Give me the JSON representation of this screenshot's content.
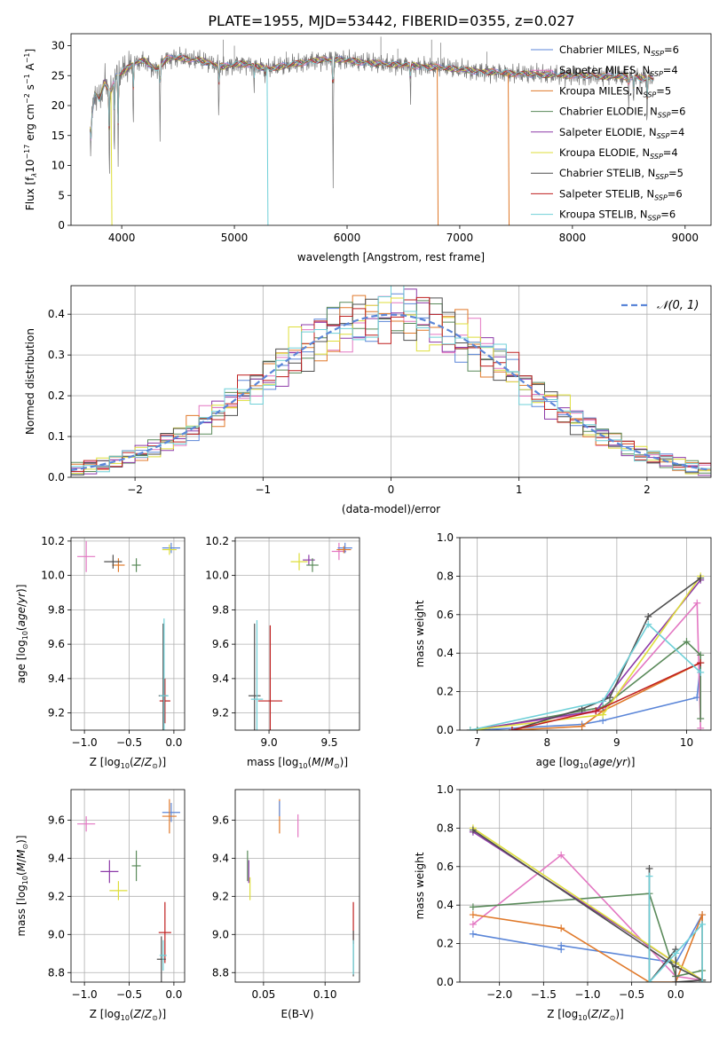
{
  "title": "PLATE=1955, MJD=53442, FIBERID=0355, z=0.027",
  "colors": [
    "#5b86d8",
    "#e377c2",
    "#e0792a",
    "#5a8a5a",
    "#8d3aa8",
    "#dede3a",
    "#4f4f4f",
    "#bf1f1f",
    "#6fd0d8"
  ],
  "legend_labels": [
    "Chabrier MILES, N_SSP=6",
    "Salpeter MILES, N_SSP=4",
    "Kroupa MILES, N_SSP=5",
    "Chabrier ELODIE, N_SSP=6",
    "Salpeter ELODIE, N_SSP=4",
    "Kroupa ELODIE, N_SSP=4",
    "Chabrier STELIB, N_SSP=5",
    "Salpeter STELIB, N_SSP=6",
    "Kroupa STELIB, N_SSP=6"
  ],
  "chart_data": [
    {
      "id": "spectrum",
      "type": "line",
      "xlabel": "wavelength [Angstrom, rest frame]",
      "ylabel": "Flux [f_λ 10^-17 erg cm^-2 s^-1 A^-1]",
      "xlim": [
        3550,
        9230
      ],
      "ylim": [
        0,
        32
      ],
      "xticks": [
        4000,
        5000,
        6000,
        7000,
        8000,
        9000
      ],
      "yticks": [
        0,
        5,
        10,
        15,
        20,
        25,
        30
      ],
      "grid": false,
      "legend": "upper-right",
      "continuum": [
        [
          3720,
          16
        ],
        [
          3760,
          22
        ],
        [
          3800,
          21
        ],
        [
          3850,
          24
        ],
        [
          3900,
          22
        ],
        [
          3950,
          25
        ],
        [
          4000,
          25.5
        ],
        [
          4100,
          27
        ],
        [
          4200,
          27.5
        ],
        [
          4300,
          26
        ],
        [
          4400,
          27.8
        ],
        [
          4500,
          28
        ],
        [
          4700,
          27.5
        ],
        [
          4900,
          26.5
        ],
        [
          5000,
          26.8
        ],
        [
          5100,
          27
        ],
        [
          5200,
          26.5
        ],
        [
          5300,
          26.2
        ],
        [
          5500,
          26.8
        ],
        [
          5700,
          27.5
        ],
        [
          5900,
          27.8
        ],
        [
          6100,
          27.3
        ],
        [
          6300,
          27
        ],
        [
          6500,
          26.8
        ],
        [
          6700,
          26.5
        ],
        [
          6900,
          26.3
        ],
        [
          7100,
          25.8
        ],
        [
          7300,
          25.6
        ],
        [
          7500,
          25.3
        ],
        [
          7700,
          25.2
        ],
        [
          7900,
          25.1
        ],
        [
          8100,
          25
        ],
        [
          8300,
          24.9
        ],
        [
          8500,
          24.8
        ],
        [
          8700,
          24.5
        ]
      ],
      "dips": [
        [
          3727,
          11
        ],
        [
          3890,
          4
        ],
        [
          3934,
          10
        ],
        [
          3968,
          9
        ],
        [
          4102,
          15
        ],
        [
          4340,
          13
        ],
        [
          4861,
          16
        ],
        [
          5175,
          22
        ],
        [
          5270,
          24
        ],
        [
          5876,
          7
        ],
        [
          6563,
          19
        ],
        [
          8500,
          20
        ],
        [
          8542,
          19
        ],
        [
          8662,
          15
        ]
      ],
      "model_drops": [
        [
          3905,
          0
        ],
        [
          5290,
          0
        ],
        [
          6800,
          0
        ],
        [
          7430,
          0
        ]
      ]
    },
    {
      "id": "residuals",
      "type": "step",
      "xlabel": "(data-model)/error",
      "ylabel": "Normed distribution",
      "xlim": [
        -2.5,
        2.5
      ],
      "ylim": [
        0,
        0.47
      ],
      "xticks": [
        -2,
        -1,
        0,
        1,
        2
      ],
      "yticks": [
        0.0,
        0.1,
        0.2,
        0.3,
        0.4
      ],
      "xtick_labels": [
        "−2",
        "−1",
        "0",
        "1",
        "2"
      ],
      "grid": true,
      "legend": "upper-right",
      "reference": "N(0,1)",
      "reference_label": "𝒩(0, 1)",
      "bin_width": 0.1
    },
    {
      "id": "age_vs_Z",
      "type": "errorbar",
      "xlabel": "Z [log10(Z/Z⊙)]",
      "ylabel": "age [log10(age/yr)]",
      "xlim": [
        -1.15,
        0.12
      ],
      "ylim": [
        9.1,
        10.22
      ],
      "xticks": [
        -1.0,
        -0.5,
        0.0
      ],
      "xtick_labels": [
        "−1.0",
        "−0.5",
        "0.0"
      ],
      "yticks": [
        9.2,
        9.4,
        9.6,
        9.8,
        10.0,
        10.2
      ],
      "points": [
        {
          "s": 1,
          "x": -0.98,
          "y": 10.11,
          "xe": 0.1,
          "ye": 0.09
        },
        {
          "s": 2,
          "x": -0.62,
          "y": 10.06,
          "xe": 0.07,
          "ye": 0.04
        },
        {
          "s": 6,
          "x": -0.68,
          "y": 10.08,
          "xe": 0.1,
          "ye": 0.04
        },
        {
          "s": 3,
          "x": -0.42,
          "y": 10.06,
          "xe": 0.05,
          "ye": 0.04
        },
        {
          "s": 0,
          "x": -0.03,
          "y": 10.16,
          "xe": 0.1,
          "ye": 0.03
        },
        {
          "s": 5,
          "x": -0.05,
          "y": 10.15,
          "xe": 0.08,
          "ye": 0.03
        },
        {
          "s": 6,
          "x": -0.12,
          "y": 9.3,
          "xe": 0.05,
          "ye": 0.42
        },
        {
          "s": 7,
          "x": -0.1,
          "y": 9.27,
          "xe": 0.06,
          "ye": 0.13
        },
        {
          "s": 8,
          "x": -0.11,
          "y": 9.3,
          "xe": 0.05,
          "ye": 0.45
        }
      ]
    },
    {
      "id": "age_vs_mass",
      "type": "errorbar",
      "xlabel": "mass [log10(M/M⊙)]",
      "ylabel": "",
      "xlim": [
        8.72,
        9.75
      ],
      "ylim": [
        9.1,
        10.22
      ],
      "xticks": [
        9.0,
        9.5
      ],
      "xtick_labels": [
        "9.0",
        "9.5"
      ],
      "yticks": [
        9.2,
        9.4,
        9.6,
        9.8,
        10.0,
        10.2
      ],
      "points": [
        {
          "s": 5,
          "x": 9.25,
          "y": 10.08,
          "xe": 0.07,
          "ye": 0.05
        },
        {
          "s": 4,
          "x": 9.33,
          "y": 10.09,
          "xe": 0.05,
          "ye": 0.03
        },
        {
          "s": 3,
          "x": 9.36,
          "y": 10.06,
          "xe": 0.05,
          "ye": 0.04
        },
        {
          "s": 1,
          "x": 9.58,
          "y": 10.14,
          "xe": 0.06,
          "ye": 0.05
        },
        {
          "s": 0,
          "x": 9.63,
          "y": 10.16,
          "xe": 0.06,
          "ye": 0.03
        },
        {
          "s": 2,
          "x": 9.62,
          "y": 10.15,
          "xe": 0.06,
          "ye": 0.02
        },
        {
          "s": 6,
          "x": 8.88,
          "y": 9.3,
          "xe": 0.05,
          "ye": 0.42
        },
        {
          "s": 8,
          "x": 8.9,
          "y": 9.28,
          "xe": 0.05,
          "ye": 0.46
        },
        {
          "s": 7,
          "x": 9.01,
          "y": 9.27,
          "xe": 0.1,
          "ye": 0.44
        }
      ]
    },
    {
      "id": "mass_weight_vs_age",
      "type": "line",
      "xlabel": "age [log10(age/yr)]",
      "ylabel": "mass weight",
      "xlim": [
        6.75,
        10.35
      ],
      "ylim": [
        0,
        1.0
      ],
      "xticks": [
        7,
        8,
        9,
        10
      ],
      "yticks": [
        0.0,
        0.2,
        0.4,
        0.6,
        0.8,
        1.0
      ],
      "series": [
        {
          "s": 0,
          "pts": [
            [
              7.0,
              0
            ],
            [
              8.5,
              0.03
            ],
            [
              8.8,
              0.05
            ],
            [
              10.15,
              0.17
            ],
            [
              10.2,
              0.35
            ]
          ]
        },
        {
          "s": 1,
          "pts": [
            [
              6.9,
              0
            ],
            [
              8.8,
              0.1
            ],
            [
              10.15,
              0.66
            ],
            [
              10.2,
              0.01
            ]
          ]
        },
        {
          "s": 2,
          "pts": [
            [
              7.5,
              0
            ],
            [
              8.5,
              0.02
            ],
            [
              8.8,
              0.1
            ],
            [
              10.2,
              0.35
            ]
          ]
        },
        {
          "s": 3,
          "pts": [
            [
              7.0,
              0
            ],
            [
              8.5,
              0.1
            ],
            [
              8.8,
              0.12
            ],
            [
              10.0,
              0.46
            ],
            [
              10.2,
              0.39
            ],
            [
              10.2,
              0.06
            ]
          ]
        },
        {
          "s": 4,
          "pts": [
            [
              6.9,
              0
            ],
            [
              8.7,
              0.1
            ],
            [
              10.2,
              0.78
            ]
          ]
        },
        {
          "s": 5,
          "pts": [
            [
              6.9,
              0
            ],
            [
              8.8,
              0.08
            ],
            [
              10.2,
              0.8
            ]
          ]
        },
        {
          "s": 6,
          "pts": [
            [
              7.5,
              0
            ],
            [
              8.5,
              0.11
            ],
            [
              8.9,
              0.17
            ],
            [
              9.45,
              0.59
            ],
            [
              10.2,
              0.79
            ]
          ]
        },
        {
          "s": 7,
          "pts": [
            [
              7.5,
              0
            ],
            [
              8.7,
              0.1
            ],
            [
              10.2,
              0.35
            ]
          ]
        },
        {
          "s": 8,
          "pts": [
            [
              6.9,
              0
            ],
            [
              8.8,
              0.15
            ],
            [
              9.45,
              0.55
            ],
            [
              10.2,
              0.3
            ]
          ]
        }
      ]
    },
    {
      "id": "mass_vs_Z",
      "type": "errorbar",
      "xlabel": "Z [log10(Z/Z⊙)]",
      "ylabel": "mass [log10(M/M⊙)]",
      "xlim": [
        -1.15,
        0.12
      ],
      "ylim": [
        8.75,
        9.76
      ],
      "xticks": [
        -1.0,
        -0.5,
        0.0
      ],
      "xtick_labels": [
        "−1.0",
        "−0.5",
        "0.0"
      ],
      "yticks": [
        8.8,
        9.0,
        9.2,
        9.4,
        9.6
      ],
      "points": [
        {
          "s": 1,
          "x": -0.98,
          "y": 9.58,
          "xe": 0.1,
          "ye": 0.04
        },
        {
          "s": 4,
          "x": -0.72,
          "y": 9.33,
          "xe": 0.1,
          "ye": 0.06
        },
        {
          "s": 5,
          "x": -0.62,
          "y": 9.23,
          "xe": 0.1,
          "ye": 0.05
        },
        {
          "s": 3,
          "x": -0.42,
          "y": 9.36,
          "xe": 0.05,
          "ye": 0.08
        },
        {
          "s": 0,
          "x": -0.03,
          "y": 9.64,
          "xe": 0.1,
          "ye": 0.05
        },
        {
          "s": 2,
          "x": -0.05,
          "y": 9.62,
          "xe": 0.08,
          "ye": 0.09
        },
        {
          "s": 7,
          "x": -0.1,
          "y": 9.01,
          "xe": 0.07,
          "ye": 0.16
        },
        {
          "s": 6,
          "x": -0.14,
          "y": 8.87,
          "xe": 0.05,
          "ye": 0.12
        },
        {
          "s": 8,
          "x": -0.12,
          "y": 8.89,
          "xe": 0.04,
          "ye": 0.08
        }
      ]
    },
    {
      "id": "mass_vs_ebv",
      "type": "errorbar",
      "xlabel": "E(B-V)",
      "ylabel": "",
      "xlim": [
        0.027,
        0.128
      ],
      "ylim": [
        8.75,
        9.76
      ],
      "xticks": [
        0.05,
        0.1
      ],
      "xtick_labels": [
        "0.05",
        "0.10"
      ],
      "yticks": [
        8.8,
        9.0,
        9.2,
        9.4,
        9.6
      ],
      "points": [
        {
          "s": 4,
          "x": 0.038,
          "y": 9.33,
          "xe": 0,
          "ye": 0.06
        },
        {
          "s": 5,
          "x": 0.039,
          "y": 9.24,
          "xe": 0,
          "ye": 0.06
        },
        {
          "s": 3,
          "x": 0.037,
          "y": 9.36,
          "xe": 0,
          "ye": 0.08
        },
        {
          "s": 2,
          "x": 0.063,
          "y": 9.62,
          "xe": 0,
          "ye": 0.09
        },
        {
          "s": 1,
          "x": 0.078,
          "y": 9.57,
          "xe": 0,
          "ye": 0.06
        },
        {
          "s": 0,
          "x": 0.063,
          "y": 9.66,
          "xe": 0,
          "ye": 0.04
        },
        {
          "s": 7,
          "x": 0.123,
          "y": 9.06,
          "xe": 0,
          "ye": 0.11
        },
        {
          "s": 6,
          "x": 0.123,
          "y": 8.9,
          "xe": 0,
          "ye": 0.12
        },
        {
          "s": 8,
          "x": 0.123,
          "y": 8.88,
          "xe": 0,
          "ye": 0.09
        }
      ]
    },
    {
      "id": "mass_weight_vs_Z",
      "type": "line",
      "xlabel": "Z [log10(Z/Z⊙)]",
      "ylabel": "mass weight",
      "xlim": [
        -2.45,
        0.4
      ],
      "ylim": [
        0,
        1.0
      ],
      "xticks": [
        -2.0,
        -1.5,
        -1.0,
        -0.5,
        0.0
      ],
      "xtick_labels": [
        "−2.0",
        "−1.5",
        "−1.0",
        "−0.5",
        "0.0"
      ],
      "yticks": [
        0.0,
        0.2,
        0.4,
        0.6,
        0.8,
        1.0
      ],
      "series": [
        {
          "s": 0,
          "pts": [
            [
              -2.3,
              0.25
            ],
            [
              -1.3,
              0.17
            ],
            [
              -1.3,
              0.19
            ],
            [
              0.0,
              0.1
            ],
            [
              0.3,
              0.35
            ],
            [
              0.3,
              0.0
            ]
          ]
        },
        {
          "s": 1,
          "pts": [
            [
              -2.3,
              0.3
            ],
            [
              -1.3,
              0.66
            ],
            [
              0.0,
              0.03
            ],
            [
              0.3,
              0.01
            ]
          ]
        },
        {
          "s": 2,
          "pts": [
            [
              -2.3,
              0.35
            ],
            [
              -1.3,
              0.28
            ],
            [
              -0.3,
              0.0
            ],
            [
              0.0,
              0.0
            ],
            [
              0.3,
              0.35
            ],
            [
              0.3,
              0.0
            ]
          ]
        },
        {
          "s": 3,
          "pts": [
            [
              -2.3,
              0.39
            ],
            [
              -0.3,
              0.46
            ],
            [
              0.0,
              0.03
            ],
            [
              0.3,
              0.06
            ],
            [
              0.3,
              0.01
            ]
          ]
        },
        {
          "s": 4,
          "pts": [
            [
              -2.3,
              0.78
            ],
            [
              0.0,
              0.1
            ],
            [
              0.3,
              0.01
            ]
          ]
        },
        {
          "s": 5,
          "pts": [
            [
              -2.3,
              0.8
            ],
            [
              0.0,
              0.1
            ],
            [
              0.3,
              0.01
            ]
          ]
        },
        {
          "s": 6,
          "pts": [
            [
              -2.3,
              0.79
            ],
            [
              0.0,
              0.08
            ],
            [
              0.3,
              0.01
            ]
          ]
        },
        {
          "s": 6,
          "pts": [
            [
              -0.3,
              0.59
            ],
            [
              -0.3,
              0.0
            ],
            [
              0.0,
              0.17
            ],
            [
              0.0,
              0.0
            ],
            [
              0.3,
              0.01
            ]
          ]
        },
        {
          "s": 8,
          "pts": [
            [
              -0.3,
              0.55
            ],
            [
              -0.3,
              0.0
            ],
            [
              0.0,
              0.15
            ],
            [
              0.3,
              0.3
            ],
            [
              0.3,
              0.0
            ]
          ]
        }
      ]
    }
  ]
}
